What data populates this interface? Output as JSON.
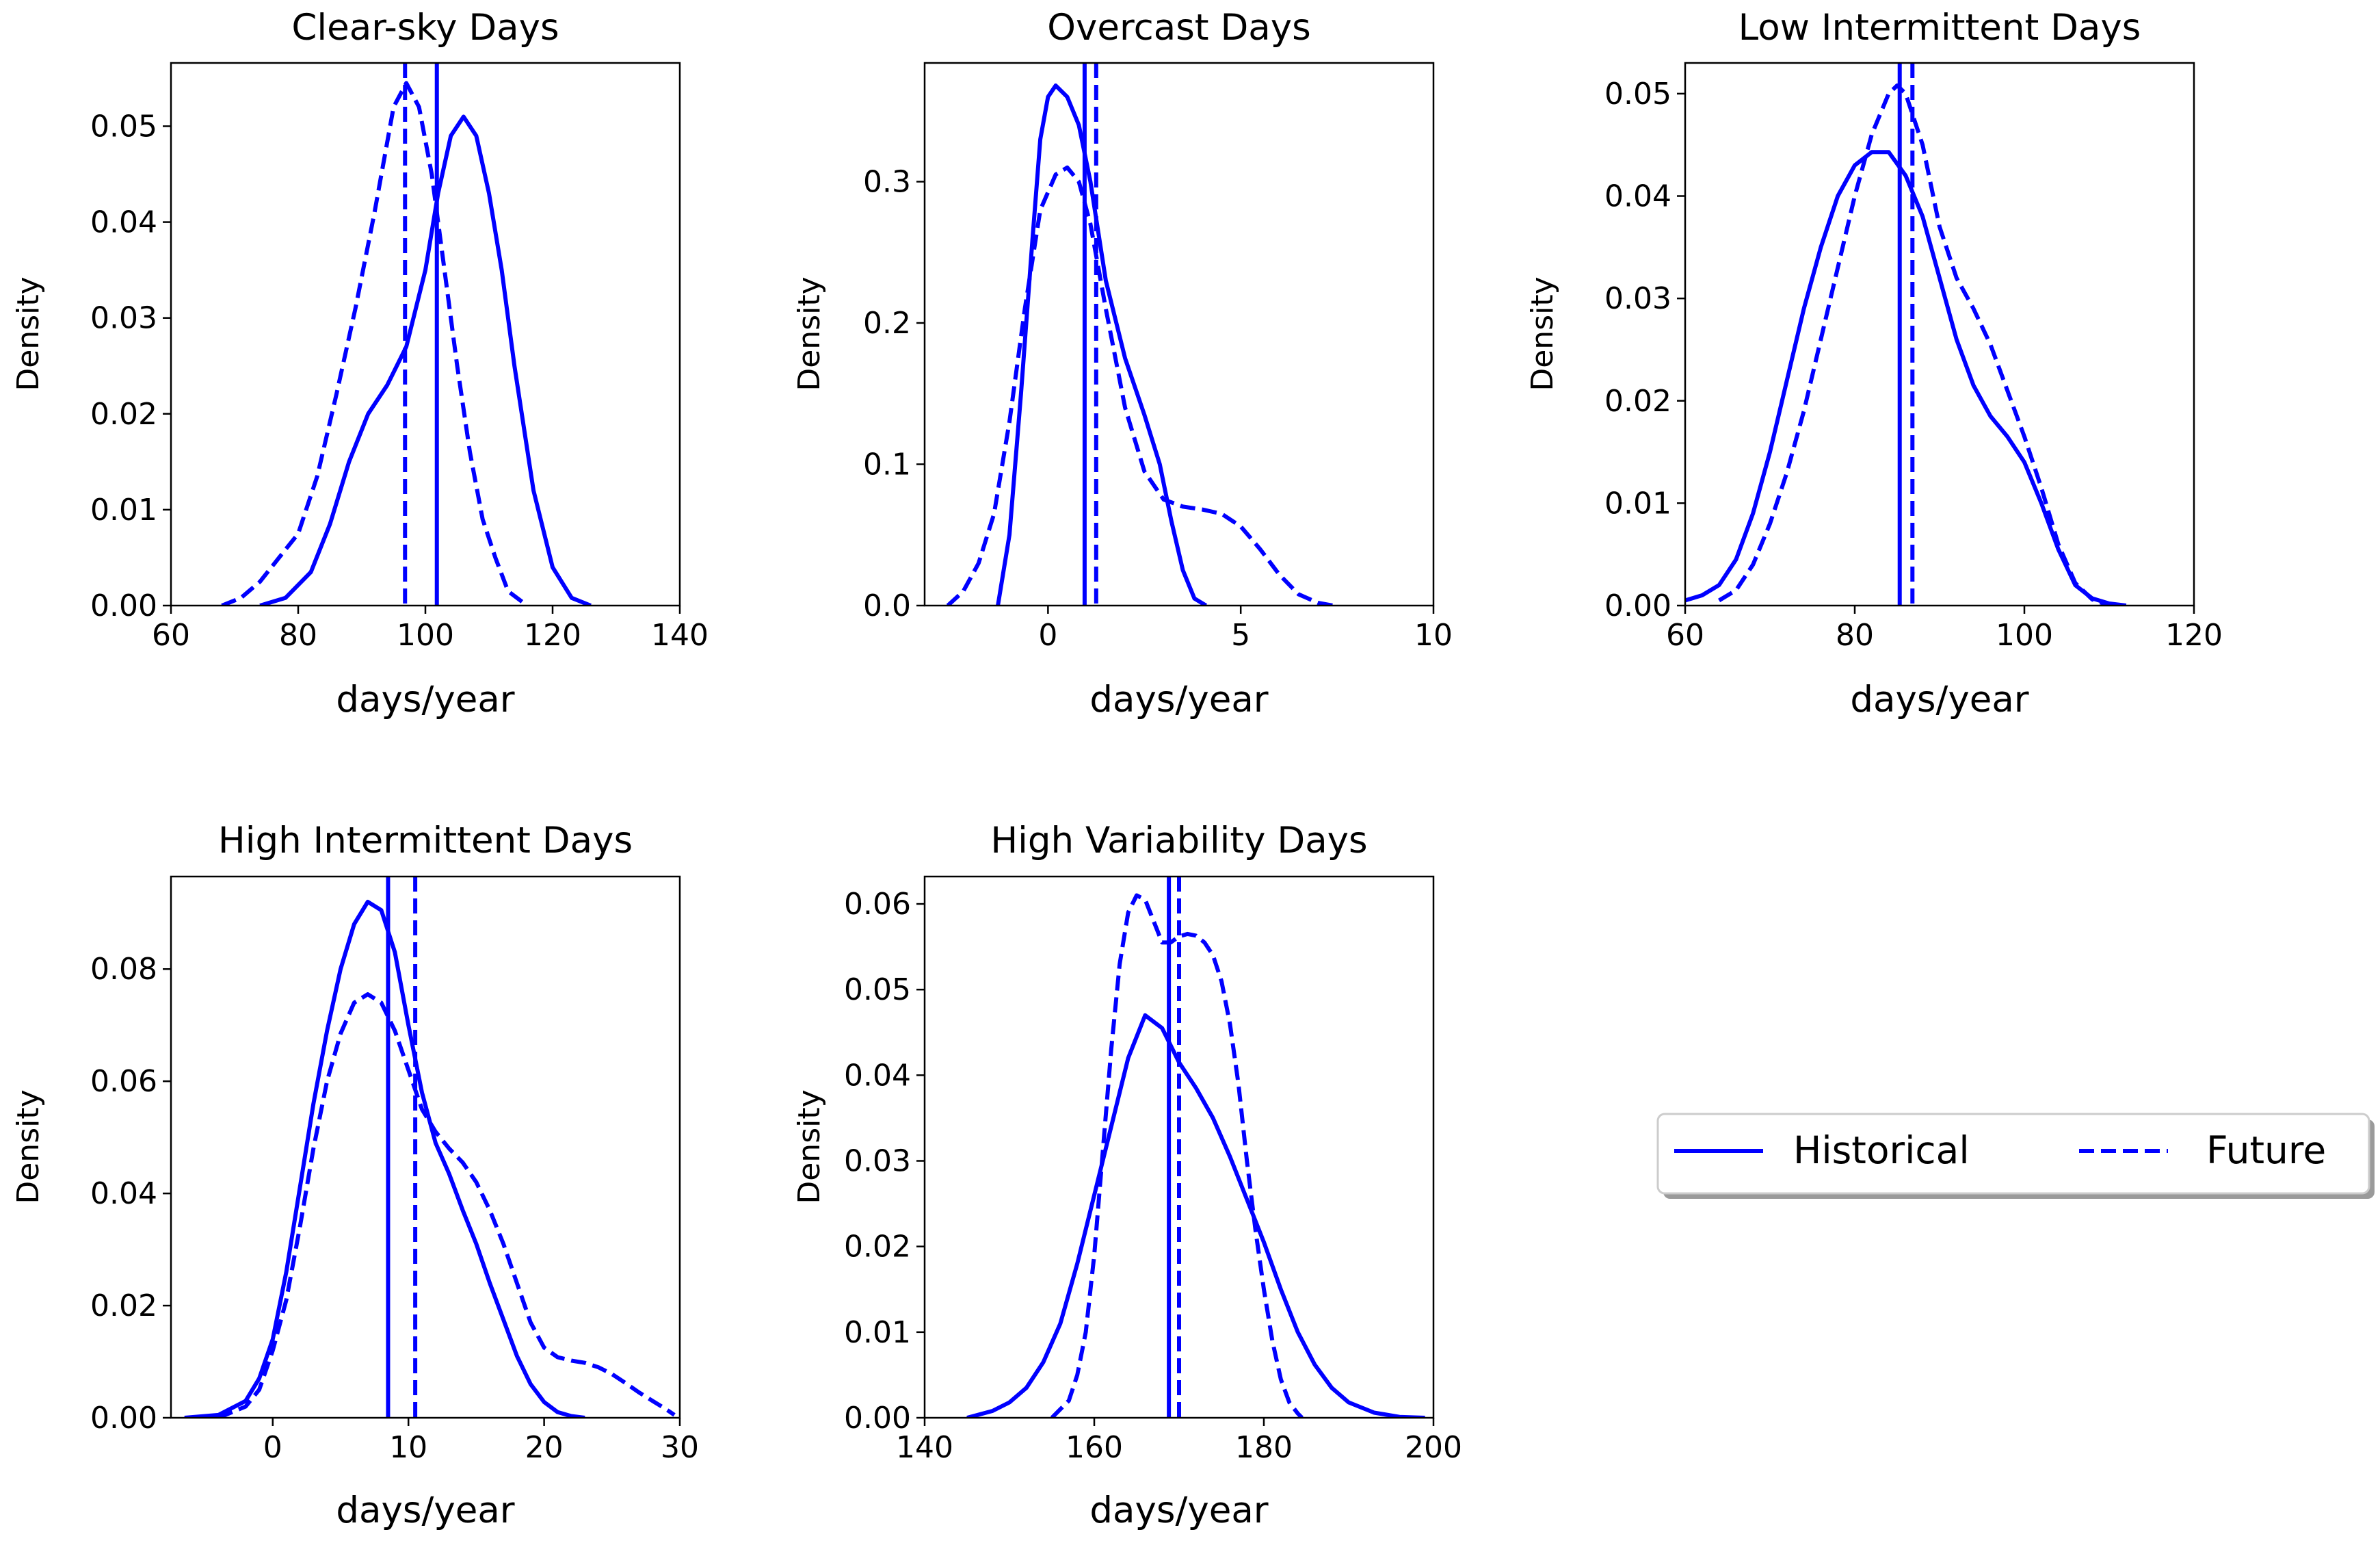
{
  "series_style": {
    "historical": {
      "name": "Historical",
      "color": "#0000ff",
      "dash": "solid"
    },
    "future": {
      "name": "Future",
      "color": "#0000ff",
      "dash": "dashed"
    }
  },
  "legend": {
    "placement": "right-center",
    "entries": [
      "Historical",
      "Future"
    ]
  },
  "chart_data": [
    {
      "type": "line",
      "title": "Clear-sky Days",
      "xlabel": "days/year",
      "ylabel": "Density",
      "xlim": [
        60,
        140
      ],
      "ylim": [
        0,
        0.0566
      ],
      "xticks": [
        60,
        80,
        100,
        120,
        140
      ],
      "xtick_labels": [
        "60",
        "80",
        "100",
        "120",
        "140"
      ],
      "yticks": [
        0,
        0.01,
        0.02,
        0.03,
        0.04,
        0.05
      ],
      "ytick_labels": [
        "0.00",
        "0.01",
        "0.02",
        "0.03",
        "0.04",
        "0.05"
      ],
      "vlines": {
        "historical": 101.8,
        "future": 96.8
      },
      "series": [
        {
          "name": "Historical",
          "x": [
            74,
            78,
            82,
            85,
            88,
            91,
            94,
            97,
            100,
            102,
            104,
            106,
            108,
            110,
            112,
            114,
            117,
            120,
            123,
            126
          ],
          "y": [
            0.0,
            0.0008,
            0.0035,
            0.0085,
            0.015,
            0.02,
            0.023,
            0.027,
            0.035,
            0.043,
            0.049,
            0.051,
            0.049,
            0.043,
            0.035,
            0.025,
            0.012,
            0.004,
            0.0008,
            0.0
          ]
        },
        {
          "name": "Future",
          "x": [
            68,
            71,
            74,
            77,
            80,
            83,
            86,
            89,
            92,
            95,
            97,
            99,
            101,
            103,
            105,
            107,
            109,
            111,
            113,
            116
          ],
          "y": [
            0.0,
            0.0008,
            0.0025,
            0.005,
            0.0075,
            0.0135,
            0.022,
            0.031,
            0.041,
            0.052,
            0.0545,
            0.052,
            0.045,
            0.035,
            0.025,
            0.016,
            0.009,
            0.005,
            0.0015,
            0.0
          ]
        }
      ]
    },
    {
      "type": "line",
      "title": "Overcast Days",
      "xlabel": "days/year",
      "ylabel": "Density",
      "xlim": [
        -3.2,
        10
      ],
      "ylim": [
        0,
        0.384
      ],
      "xticks": [
        0,
        5,
        10
      ],
      "xtick_labels": [
        "0",
        "5",
        "10"
      ],
      "yticks": [
        0,
        0.1,
        0.2,
        0.3
      ],
      "ytick_labels": [
        "0.0",
        "0.1",
        "0.2",
        "0.3"
      ],
      "vlines": {
        "historical": 0.95,
        "future": 1.25
      },
      "series": [
        {
          "name": "Historical",
          "x": [
            -1.3,
            -1.0,
            -0.7,
            -0.4,
            -0.2,
            0.0,
            0.2,
            0.5,
            0.8,
            1.1,
            1.5,
            2.0,
            2.5,
            2.9,
            3.2,
            3.5,
            3.8,
            4.1
          ],
          "y": [
            0.0,
            0.05,
            0.15,
            0.26,
            0.33,
            0.36,
            0.368,
            0.36,
            0.34,
            0.3,
            0.23,
            0.175,
            0.135,
            0.1,
            0.06,
            0.025,
            0.005,
            0.0
          ],
          "mark": "solid"
        },
        {
          "name": "Future",
          "x": [
            -2.6,
            -2.2,
            -1.8,
            -1.4,
            -1.0,
            -0.6,
            -0.2,
            0.2,
            0.5,
            0.8,
            1.1,
            1.5,
            2.0,
            2.5,
            3.0,
            3.5,
            4.0,
            4.5,
            5.0,
            5.5,
            6.0,
            6.5,
            7.0,
            7.4
          ],
          "y": [
            0.0,
            0.01,
            0.03,
            0.065,
            0.13,
            0.21,
            0.28,
            0.305,
            0.31,
            0.3,
            0.27,
            0.21,
            0.14,
            0.095,
            0.075,
            0.07,
            0.068,
            0.065,
            0.056,
            0.04,
            0.022,
            0.008,
            0.002,
            0.0
          ]
        }
      ]
    },
    {
      "type": "line",
      "title": "Low Intermittent Days",
      "xlabel": "days/year",
      "ylabel": "Density",
      "xlim": [
        60,
        120
      ],
      "ylim": [
        0,
        0.053
      ],
      "xticks": [
        60,
        80,
        100,
        120
      ],
      "xtick_labels": [
        "60",
        "80",
        "100",
        "120"
      ],
      "yticks": [
        0,
        0.01,
        0.02,
        0.03,
        0.04,
        0.05
      ],
      "ytick_labels": [
        "0.00",
        "0.01",
        "0.02",
        "0.03",
        "0.04",
        "0.05"
      ],
      "vlines": {
        "historical": 85.3,
        "future": 86.8
      },
      "series": [
        {
          "name": "Historical",
          "x": [
            60,
            62,
            64,
            66,
            68,
            70,
            72,
            74,
            76,
            78,
            80,
            82,
            84,
            86,
            88,
            90,
            92,
            94,
            96,
            98,
            100,
            102,
            104,
            106,
            108,
            110,
            112
          ],
          "y": [
            0.0005,
            0.001,
            0.002,
            0.0045,
            0.009,
            0.015,
            0.022,
            0.029,
            0.035,
            0.04,
            0.043,
            0.0443,
            0.0443,
            0.042,
            0.038,
            0.032,
            0.026,
            0.0215,
            0.0185,
            0.0165,
            0.014,
            0.01,
            0.0055,
            0.002,
            0.0007,
            0.0002,
            0.0
          ]
        },
        {
          "name": "Future",
          "x": [
            64,
            66,
            68,
            70,
            72,
            74,
            76,
            78,
            80,
            82,
            84,
            85,
            86,
            88,
            90,
            92,
            94,
            96,
            98,
            100,
            102,
            104,
            106,
            108,
            110
          ],
          "y": [
            0.0005,
            0.0015,
            0.004,
            0.008,
            0.013,
            0.019,
            0.026,
            0.033,
            0.04,
            0.046,
            0.05,
            0.0508,
            0.05,
            0.045,
            0.037,
            0.032,
            0.029,
            0.0255,
            0.021,
            0.0165,
            0.0115,
            0.006,
            0.0022,
            0.0006,
            0.0
          ]
        }
      ]
    },
    {
      "type": "line",
      "title": "High Intermittent Days",
      "xlabel": "days/year",
      "ylabel": "Density",
      "xlim": [
        -7.5,
        30
      ],
      "ylim": [
        0,
        0.0965
      ],
      "xticks": [
        0,
        10,
        20,
        30
      ],
      "xtick_labels": [
        "0",
        "10",
        "20",
        "30"
      ],
      "yticks": [
        0,
        0.02,
        0.04,
        0.06,
        0.08
      ],
      "ytick_labels": [
        "0.00",
        "0.02",
        "0.04",
        "0.06",
        "0.08"
      ],
      "vlines": {
        "historical": 8.5,
        "future": 10.5
      },
      "series": [
        {
          "name": "Historical",
          "x": [
            -6.5,
            -4,
            -2,
            -1,
            0,
            1,
            2,
            3,
            4,
            5,
            6,
            7,
            8,
            9,
            10,
            11,
            12,
            13,
            14,
            15,
            16,
            17,
            18,
            19,
            20,
            21,
            22,
            23
          ],
          "y": [
            0.0,
            0.0005,
            0.003,
            0.007,
            0.014,
            0.026,
            0.041,
            0.056,
            0.069,
            0.08,
            0.088,
            0.092,
            0.0905,
            0.083,
            0.07,
            0.058,
            0.049,
            0.0435,
            0.037,
            0.031,
            0.024,
            0.0175,
            0.011,
            0.006,
            0.0028,
            0.001,
            0.0003,
            0.0
          ]
        },
        {
          "name": "Future",
          "x": [
            -4,
            -2,
            -1,
            0,
            1,
            2,
            3,
            4,
            5,
            6,
            7,
            8,
            9,
            10,
            11,
            12,
            13,
            14,
            15,
            16,
            17,
            18,
            19,
            20,
            21,
            22,
            23,
            24,
            25,
            26,
            27,
            28,
            29,
            29.6
          ],
          "y": [
            0.0,
            0.002,
            0.005,
            0.012,
            0.021,
            0.034,
            0.048,
            0.06,
            0.0685,
            0.074,
            0.0755,
            0.074,
            0.069,
            0.062,
            0.055,
            0.051,
            0.048,
            0.0455,
            0.042,
            0.037,
            0.031,
            0.024,
            0.017,
            0.0125,
            0.0108,
            0.0102,
            0.0098,
            0.009,
            0.0078,
            0.0062,
            0.0045,
            0.003,
            0.0015,
            0.0005
          ]
        }
      ]
    },
    {
      "type": "line",
      "title": "High Variability Days",
      "xlabel": "days/year",
      "ylabel": "Density",
      "xlim": [
        140,
        200
      ],
      "ylim": [
        0,
        0.0632
      ],
      "xticks": [
        140,
        160,
        180,
        200
      ],
      "xtick_labels": [
        "140",
        "160",
        "180",
        "200"
      ],
      "yticks": [
        0,
        0.01,
        0.02,
        0.03,
        0.04,
        0.05,
        0.06
      ],
      "ytick_labels": [
        "0.00",
        "0.01",
        "0.02",
        "0.03",
        "0.04",
        "0.05",
        "0.06"
      ],
      "vlines": {
        "historical": 168.8,
        "future": 170.0
      },
      "series": [
        {
          "name": "Historical",
          "x": [
            145,
            148,
            150,
            152,
            154,
            156,
            158,
            160,
            162,
            164,
            166,
            168,
            170,
            172,
            174,
            176,
            178,
            180,
            182,
            184,
            186,
            188,
            190,
            193,
            196,
            199
          ],
          "y": [
            0.0,
            0.0008,
            0.0018,
            0.0035,
            0.0065,
            0.011,
            0.018,
            0.026,
            0.034,
            0.042,
            0.047,
            0.0455,
            0.0415,
            0.0385,
            0.035,
            0.0305,
            0.0255,
            0.0205,
            0.015,
            0.01,
            0.0062,
            0.0035,
            0.0018,
            0.0006,
            0.0001,
            0.0
          ]
        },
        {
          "name": "Future",
          "x": [
            155,
            157,
            158,
            159,
            160,
            161,
            162,
            163,
            164,
            165,
            166,
            167,
            168,
            169,
            170,
            171,
            172,
            173,
            174,
            175,
            176,
            177,
            178,
            179,
            180,
            181,
            182,
            183,
            184,
            184.5
          ],
          "y": [
            0.0,
            0.002,
            0.005,
            0.01,
            0.019,
            0.031,
            0.043,
            0.053,
            0.059,
            0.061,
            0.0605,
            0.058,
            0.0555,
            0.0555,
            0.0562,
            0.0565,
            0.0563,
            0.0555,
            0.054,
            0.051,
            0.046,
            0.039,
            0.03,
            0.022,
            0.015,
            0.009,
            0.0045,
            0.0018,
            0.0005,
            0.0
          ]
        }
      ]
    }
  ]
}
